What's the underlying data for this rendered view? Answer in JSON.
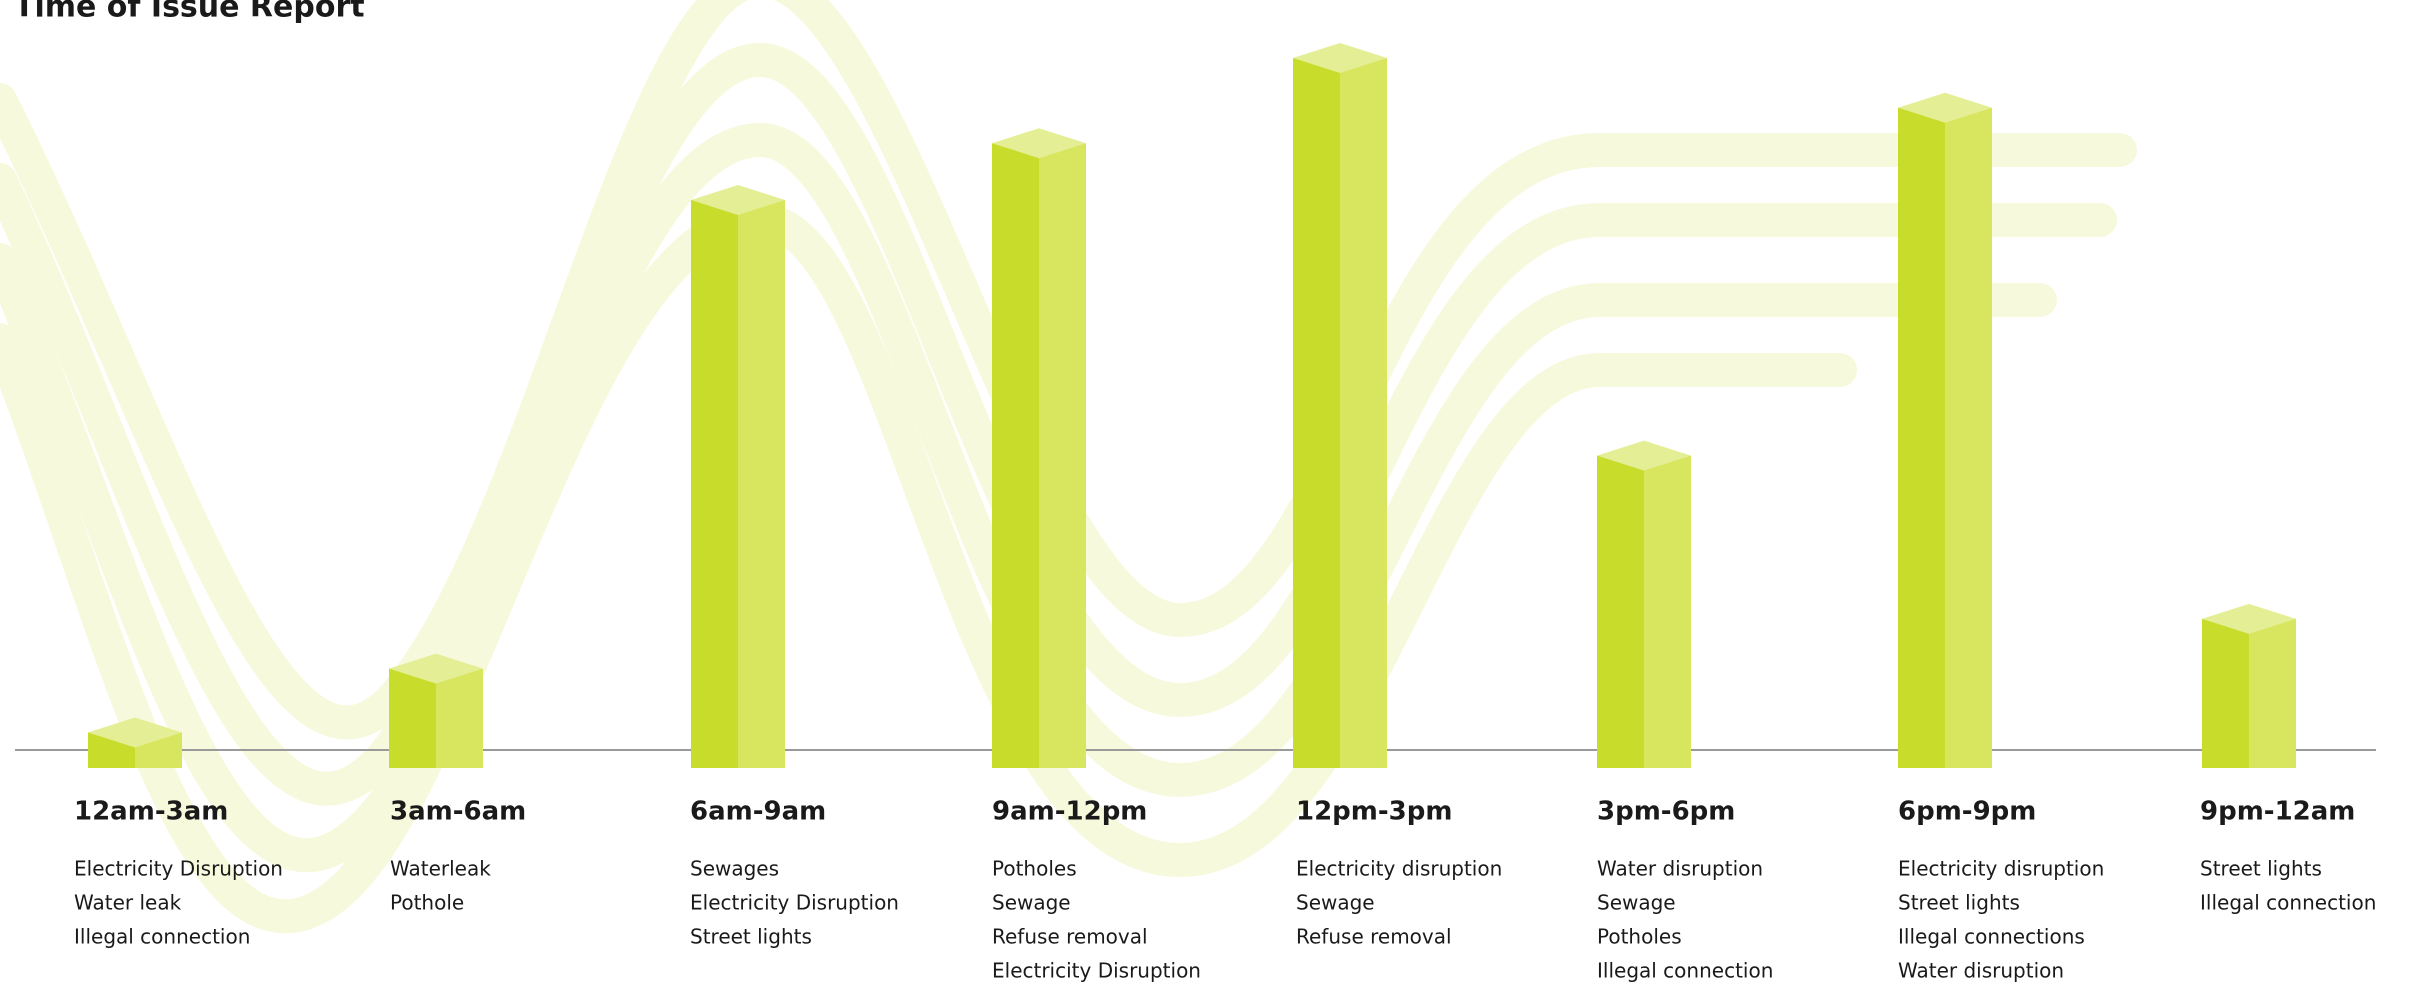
{
  "chart_data": {
    "type": "bar",
    "title": "Time of Issue Report",
    "categories": [
      "12am-3am",
      "3am-6am",
      "6am-9am",
      "9am-12pm",
      "12pm-3pm",
      "3pm-6pm",
      "6pm-9pm",
      "9pm-12am"
    ],
    "values": [
      5,
      14,
      80,
      88,
      100,
      44,
      93,
      21
    ],
    "color": "#c8dc2c",
    "issues": [
      [
        "Electricity Disruption",
        "Water leak",
        "Illegal connection"
      ],
      [
        "Waterleak",
        "Pothole"
      ],
      [
        "Sewages",
        "Electricity Disruption",
        "Street lights"
      ],
      [
        "Potholes",
        "Sewage",
        "Refuse removal",
        "Electricity Disruption"
      ],
      [
        "Electricity disruption",
        "Sewage",
        "Refuse removal"
      ],
      [
        "Water disruption",
        "Sewage",
        "Potholes",
        "Illegal connection"
      ],
      [
        "Electricity disruption",
        "Street lights",
        "Illegal connections",
        "Water disruption"
      ],
      [
        "Street lights",
        "Illegal connection"
      ]
    ]
  }
}
